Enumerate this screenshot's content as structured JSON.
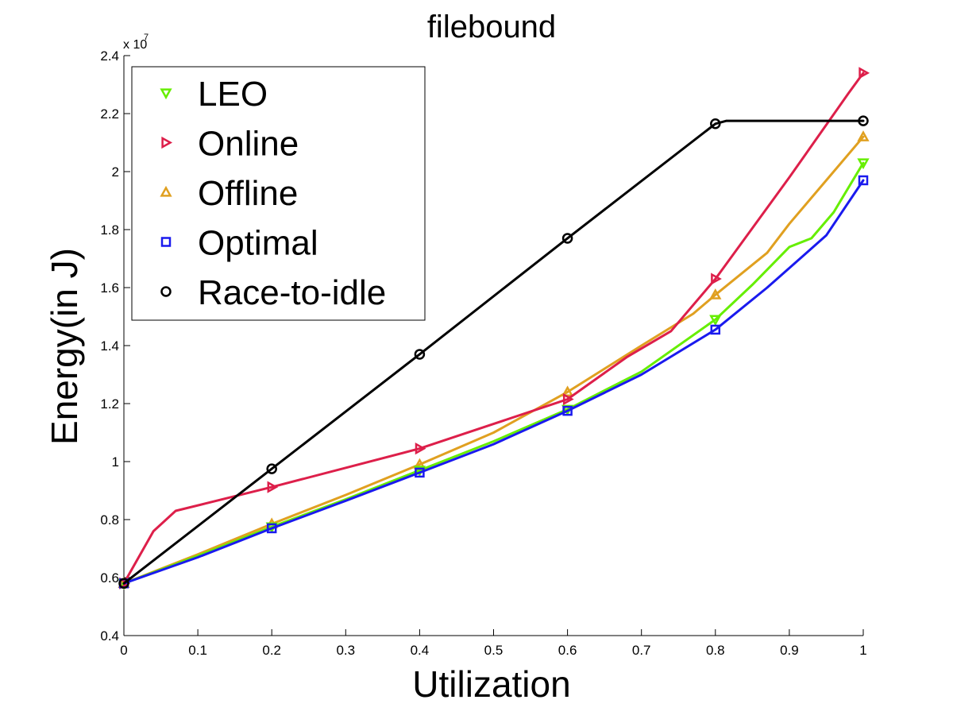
{
  "chart_data": {
    "type": "line",
    "title": "filebound",
    "xlabel": "Utilization",
    "ylabel": "Energy(in J)",
    "y_multiplier_label": "x 10",
    "y_multiplier_exponent": "7",
    "xlim": [
      0,
      1
    ],
    "ylim": [
      0.4,
      2.4
    ],
    "x_ticks": [
      0,
      0.1,
      0.2,
      0.3,
      0.4,
      0.5,
      0.6,
      0.7,
      0.8,
      0.9,
      1
    ],
    "x_tick_labels": [
      "0",
      "0.1",
      "0.2",
      "0.3",
      "0.4",
      "0.5",
      "0.6",
      "0.7",
      "0.8",
      "0.9",
      "1"
    ],
    "y_ticks": [
      0.4,
      0.6,
      0.8,
      1.0,
      1.2,
      1.4,
      1.6,
      1.8,
      2.0,
      2.2,
      2.4
    ],
    "y_tick_labels": [
      "0.4",
      "0.6",
      "0.8",
      "1",
      "1.2",
      "1.4",
      "1.6",
      "1.8",
      "2",
      "2.2",
      "2.4"
    ],
    "grid": false,
    "legend_position": "top-left",
    "series": [
      {
        "name": "Offline",
        "color": "#e0a020",
        "marker": "triangle-up",
        "x": [
          0,
          0.2,
          0.4,
          0.6,
          0.8,
          1
        ],
        "y": [
          0.58,
          0.785,
          0.99,
          1.24,
          1.575,
          2.12
        ],
        "curve_x": [
          0,
          0.1,
          0.2,
          0.3,
          0.4,
          0.5,
          0.6,
          0.7,
          0.77,
          0.8,
          0.87,
          0.9,
          0.95,
          1
        ],
        "curve_y": [
          0.58,
          0.68,
          0.785,
          0.885,
          0.99,
          1.1,
          1.24,
          1.4,
          1.51,
          1.575,
          1.72,
          1.82,
          1.97,
          2.12
        ]
      },
      {
        "name": "LEO",
        "color": "#66ee00",
        "marker": "triangle-down",
        "x": [
          0,
          0.2,
          0.4,
          0.6,
          0.8,
          1
        ],
        "y": [
          0.58,
          0.775,
          0.97,
          1.18,
          1.49,
          2.03
        ],
        "curve_x": [
          0,
          0.1,
          0.2,
          0.3,
          0.4,
          0.5,
          0.6,
          0.7,
          0.8,
          0.85,
          0.9,
          0.93,
          0.96,
          1
        ],
        "curve_y": [
          0.58,
          0.675,
          0.775,
          0.87,
          0.97,
          1.07,
          1.18,
          1.31,
          1.49,
          1.61,
          1.74,
          1.77,
          1.86,
          2.03
        ]
      },
      {
        "name": "Online",
        "color": "#dd1f4a",
        "marker": "triangle-right",
        "x": [
          0,
          0.2,
          0.4,
          0.6,
          0.8,
          1
        ],
        "y": [
          0.58,
          0.912,
          1.045,
          1.215,
          1.63,
          2.34
        ],
        "curve_x": [
          0,
          0.04,
          0.07,
          0.2,
          0.4,
          0.5,
          0.6,
          0.68,
          0.74,
          0.8,
          0.9,
          0.98,
          1
        ],
        "curve_y": [
          0.58,
          0.76,
          0.83,
          0.912,
          1.045,
          1.13,
          1.215,
          1.36,
          1.45,
          1.63,
          1.98,
          2.27,
          2.34
        ]
      },
      {
        "name": "Optimal",
        "color": "#1a1aee",
        "marker": "square",
        "x": [
          0,
          0.2,
          0.4,
          0.6,
          0.8,
          1
        ],
        "y": [
          0.58,
          0.77,
          0.962,
          1.175,
          1.455,
          1.97
        ],
        "curve_x": [
          0,
          0.1,
          0.2,
          0.3,
          0.4,
          0.5,
          0.6,
          0.7,
          0.8,
          0.87,
          0.95,
          1
        ],
        "curve_y": [
          0.58,
          0.67,
          0.77,
          0.865,
          0.962,
          1.06,
          1.175,
          1.3,
          1.455,
          1.6,
          1.78,
          1.97
        ]
      },
      {
        "name": "Race-to-idle",
        "color": "#000000",
        "marker": "circle",
        "x": [
          0,
          0.2,
          0.4,
          0.6,
          0.8,
          1
        ],
        "y": [
          0.58,
          0.975,
          1.37,
          1.77,
          2.165,
          2.175
        ],
        "curve_x": [
          0,
          0.2,
          0.4,
          0.6,
          0.8,
          0.815,
          1
        ],
        "curve_y": [
          0.58,
          0.975,
          1.37,
          1.77,
          2.165,
          2.175,
          2.175
        ]
      }
    ],
    "legend_order": [
      "LEO",
      "Online",
      "Offline",
      "Optimal",
      "Race-to-idle"
    ]
  }
}
